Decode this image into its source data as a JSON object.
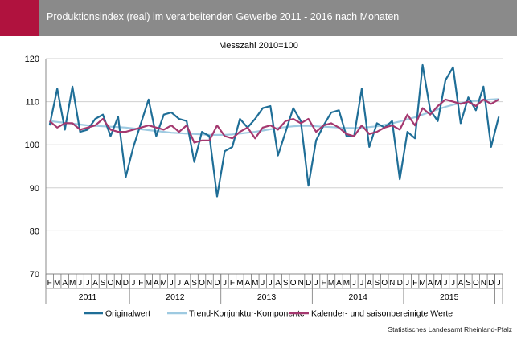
{
  "header": {
    "title": "Produktionsindex (real) im verarbeitenden Gewerbe 2011 - 2016 nach Monaten",
    "accent_color": "#b0123e",
    "background_color": "#8a8a8a"
  },
  "footer": {
    "source": "Statistisches Landesamt Rheinland-Pfalz"
  },
  "chart_data": {
    "type": "line",
    "title": "Messzahl 2010=100",
    "xlabel": "",
    "ylabel": "",
    "ylim": [
      70,
      120
    ],
    "yticks": [
      70,
      80,
      90,
      100,
      110,
      120
    ],
    "grid": true,
    "legend_position": "bottom",
    "months": [
      "F",
      "M",
      "A",
      "M",
      "J",
      "J",
      "A",
      "S",
      "O",
      "N",
      "D",
      "J",
      "F",
      "M",
      "A",
      "M",
      "J",
      "J",
      "A",
      "S",
      "O",
      "N",
      "D",
      "J",
      "F",
      "M",
      "A",
      "M",
      "J",
      "J",
      "A",
      "S",
      "O",
      "N",
      "D",
      "J",
      "F",
      "M",
      "A",
      "M",
      "J",
      "J",
      "A",
      "S",
      "O",
      "N",
      "D",
      "J",
      "F",
      "M",
      "A",
      "M",
      "J",
      "J",
      "A",
      "S",
      "O",
      "N",
      "D",
      "J"
    ],
    "years": [
      {
        "label": "2011",
        "start": 0,
        "count": 11
      },
      {
        "label": "2012",
        "start": 11,
        "count": 12
      },
      {
        "label": "2013",
        "start": 23,
        "count": 12
      },
      {
        "label": "2014",
        "start": 35,
        "count": 12
      },
      {
        "label": "2015",
        "start": 47,
        "count": 12
      }
    ],
    "series": [
      {
        "name": "Originalwert",
        "color": "#1f6e97",
        "values": [
          104.5,
          113.0,
          103.5,
          113.5,
          103.0,
          103.5,
          106.0,
          107.0,
          102.0,
          106.5,
          92.5,
          99.5,
          105.0,
          110.5,
          102.0,
          107.0,
          107.5,
          106.0,
          105.5,
          96.0,
          103.0,
          102.0,
          88.0,
          98.5,
          99.5,
          106.0,
          104.0,
          106.0,
          108.5,
          109.0,
          97.5,
          103.0,
          108.5,
          105.5,
          90.5,
          101.0,
          104.5,
          107.5,
          108.0,
          102.0,
          102.0,
          113.0,
          99.5,
          105.0,
          104.0,
          105.5,
          92.0,
          103.0,
          101.5,
          118.5,
          108.0,
          105.5,
          115.0,
          118.0,
          105.0,
          111.0,
          108.0,
          113.5,
          99.5,
          106.5
        ]
      },
      {
        "name": "Trend-Konjunktur-Komponente",
        "color": "#9ecae1",
        "values": [
          105.5,
          105.3,
          105.1,
          104.9,
          104.7,
          104.5,
          104.4,
          104.3,
          104.2,
          104.1,
          104.0,
          103.8,
          103.6,
          103.4,
          103.2,
          103.0,
          102.8,
          102.7,
          102.6,
          102.5,
          102.4,
          102.3,
          102.3,
          102.3,
          102.4,
          102.6,
          102.8,
          103.0,
          103.3,
          103.6,
          103.9,
          104.1,
          104.3,
          104.4,
          104.4,
          104.3,
          104.2,
          104.1,
          104.0,
          103.9,
          103.9,
          104.0,
          104.1,
          104.3,
          104.6,
          105.0,
          105.4,
          105.9,
          106.4,
          107.0,
          107.6,
          108.2,
          108.8,
          109.3,
          109.7,
          110.0,
          110.2,
          110.4,
          110.5,
          110.6
        ]
      },
      {
        "name": "Kalender- und saisonbereinigte Werte",
        "color": "#a4386f",
        "values": [
          105.5,
          104.0,
          105.0,
          105.0,
          103.5,
          104.0,
          104.5,
          106.0,
          103.5,
          103.0,
          103.0,
          103.5,
          104.0,
          104.5,
          104.0,
          103.5,
          104.5,
          103.0,
          104.5,
          100.5,
          101.0,
          101.0,
          104.5,
          102.0,
          101.5,
          103.0,
          104.0,
          101.5,
          104.0,
          104.5,
          103.5,
          105.5,
          106.0,
          105.0,
          106.0,
          103.0,
          104.5,
          105.0,
          104.0,
          102.5,
          102.0,
          104.5,
          102.5,
          103.0,
          104.0,
          104.5,
          103.5,
          107.0,
          104.5,
          108.5,
          107.0,
          109.0,
          110.5,
          110.0,
          109.5,
          110.0,
          109.0,
          110.5,
          109.5,
          110.5
        ]
      }
    ]
  }
}
